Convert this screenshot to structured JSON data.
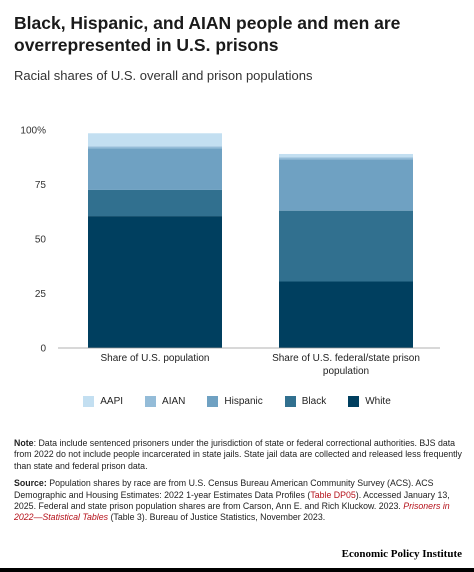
{
  "header": {
    "title": "Black, Hispanic, and AIAN people and men are overrepresented in U.S. prisons",
    "subtitle": "Racial shares of U.S. overall and prison populations"
  },
  "chart_data": {
    "type": "bar",
    "stacked": true,
    "title": "Black, Hispanic, and AIAN people and men are overrepresented in U.S. prisons",
    "subtitle": "Racial shares of U.S. overall and prison populations",
    "categories": [
      "Share of U.S. population",
      "Share of U.S. federal/state prison population"
    ],
    "category_lines": [
      [
        "Share of U.S. population"
      ],
      [
        "Share of U.S. federal/state prison",
        "population"
      ]
    ],
    "series": [
      {
        "name": "White",
        "color": "#003f5f",
        "values": [
          60.5,
          30.5
        ]
      },
      {
        "name": "Black",
        "color": "#31708f",
        "values": [
          12.0,
          32.5
        ]
      },
      {
        "name": "Hispanic",
        "color": "#6fa1c2",
        "values": [
          19.0,
          23.5
        ]
      },
      {
        "name": "AIAN",
        "color": "#94bcd8",
        "values": [
          1.0,
          1.0
        ]
      },
      {
        "name": "AAPI",
        "color": "#c3dff1",
        "values": [
          6.0,
          1.5
        ]
      }
    ],
    "legend_order": [
      "AAPI",
      "AIAN",
      "Hispanic",
      "Black",
      "White"
    ],
    "ylim": [
      0,
      100
    ],
    "yticks": [
      0,
      25,
      50,
      75,
      100
    ],
    "ytick_labels": [
      "0",
      "25",
      "50",
      "75",
      "100%"
    ],
    "grid": false,
    "legend_position": "bottom"
  },
  "notes": {
    "note_label": "Note",
    "note_text": ": Data include sentenced prisoners under the jurisdiction of state or federal correctional authorities. BJS data from 2022 do not include people incarcerated in state jails. State jail data are collected and released less frequently than state and federal prison data.",
    "source_label": "Source:",
    "source_text_1": " Population shares by race are from U.S. Census Bureau American Community Survey (ACS). ACS Demographic and Housing Estimates: 2022 1-year Estimates Data Profiles (",
    "source_link_1": "Table DP05",
    "source_text_2": "). Accessed January 13, 2025. Federal and state prison population shares are from Carson, Ann E. and Rich Kluckow. 2023. ",
    "source_link_2": "Prisoners in 2022—Statistical Tables",
    "source_text_3": " (Table 3). Bureau of Justice Statistics, November 2023."
  },
  "footer": {
    "brand": "Economic Policy Institute"
  }
}
